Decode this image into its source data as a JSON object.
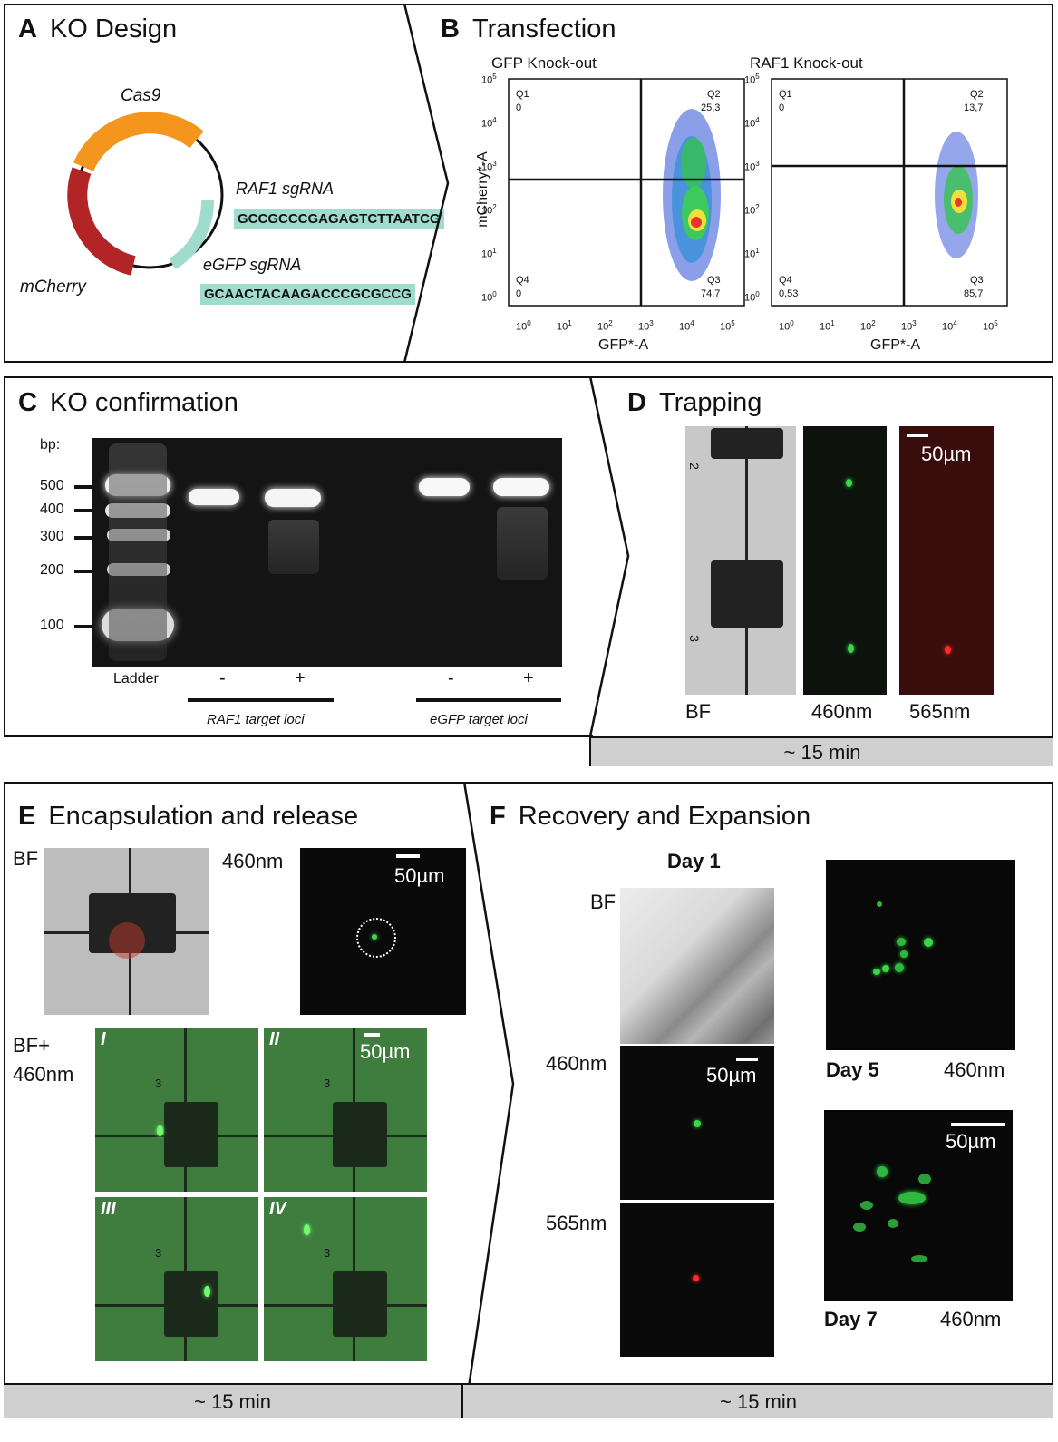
{
  "panelA": {
    "letter": "A",
    "title": "KO Design",
    "cas9": "Cas9",
    "mcherry": "mCherry",
    "raf1_sgrna_label": "RAF1 sgRNA",
    "raf1_seq": "GCCGCCCGAGAGTCTTAATCG",
    "egfp_sgrna_label": "eGFP sgRNA",
    "egfp_seq": "GCAACTACAAGACCCGCGCCG"
  },
  "panelB": {
    "letter": "B",
    "title": "Transfection",
    "plots": [
      {
        "title": "GFP Knock-out",
        "q1": "Q1",
        "q1v": "0",
        "q2": "Q2",
        "q2v": "25,3",
        "q3": "Q3",
        "q3v": "74,7",
        "q4": "Q4",
        "q4v": "0",
        "xlabel": "GFP*-A"
      },
      {
        "title": "RAF1 Knock-out",
        "q1": "Q1",
        "q1v": "0",
        "q2": "Q2",
        "q2v": "13,7",
        "q3": "Q3",
        "q3v": "85,7",
        "q4": "Q4",
        "q4v": "0,53",
        "xlabel": "GFP*-A"
      }
    ],
    "ylabel": "mCherry*-A",
    "ticks": [
      "0",
      "1",
      "2",
      "3",
      "4",
      "5"
    ]
  },
  "panelC": {
    "letter": "C",
    "title": "KO confirmation",
    "bp_label": "bp:",
    "sizes": [
      "500",
      "400",
      "300",
      "200",
      "100"
    ],
    "lanes": [
      "Ladder",
      "-",
      "+",
      "-",
      "+"
    ],
    "raf1_loci": "RAF1 target loci",
    "egfp_loci": "eGFP target loci"
  },
  "panelD": {
    "letter": "D",
    "title": "Trapping",
    "scale": "50µm",
    "labels": [
      "BF",
      "460nm",
      "565nm"
    ],
    "chip_numbers": [
      "2",
      "3"
    ],
    "time": "~ 15 min"
  },
  "panelE": {
    "letter": "E",
    "title": "Encapsulation and release",
    "bf": "BF",
    "nm460": "460nm",
    "scale": "50µm",
    "bf460_1": "BF+",
    "bf460_2": "460nm",
    "romans": [
      "I",
      "II",
      "III",
      "IV"
    ],
    "chip_number": "3",
    "time": "~ 15 min"
  },
  "panelF": {
    "letter": "F",
    "title": "Recovery and Expansion",
    "day1": "Day 1",
    "bf": "BF",
    "nm460": "460nm",
    "nm565": "565nm",
    "scale": "50µm",
    "day5": "Day 5",
    "day7": "Day 7",
    "nm460b": "460nm",
    "nm460c": "460nm",
    "time": "~ 15 min"
  }
}
